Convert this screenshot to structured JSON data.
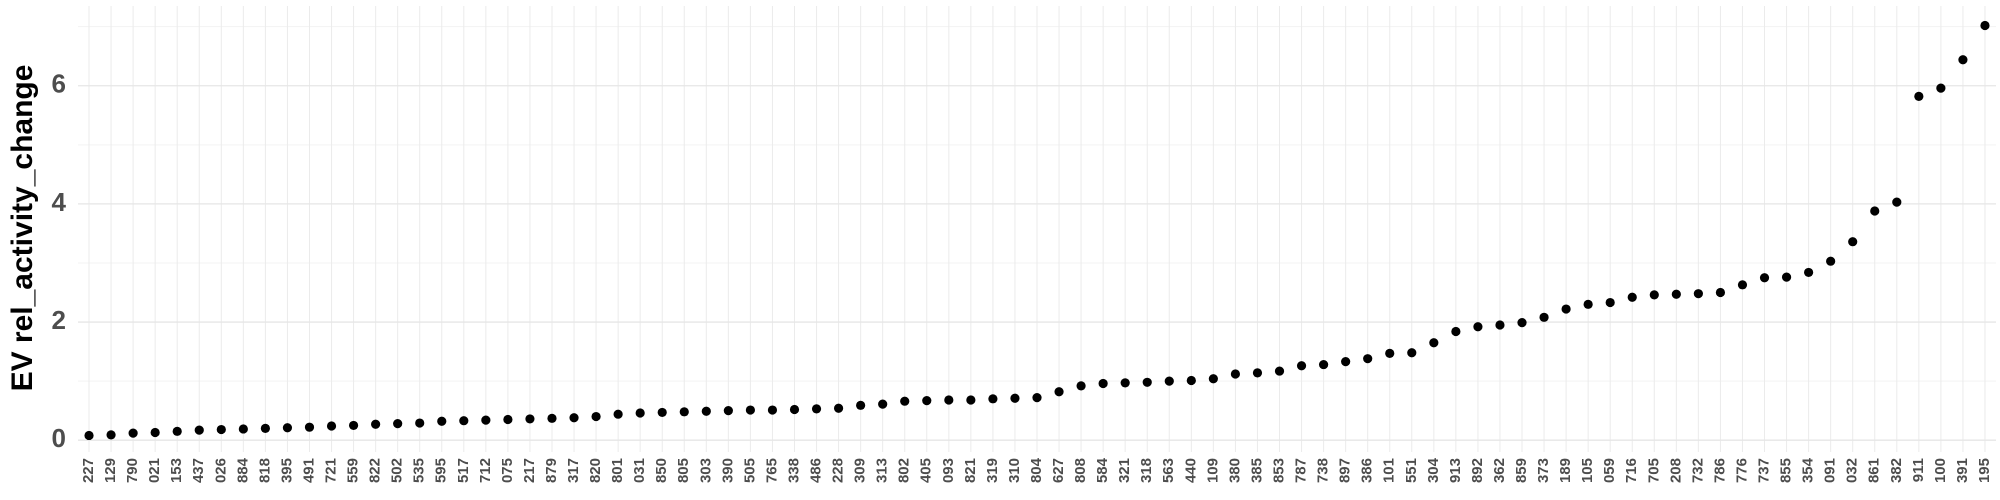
{
  "chart_data": {
    "type": "scatter",
    "y_label": "EV rel_activity_change",
    "categories": [
      "227",
      "129",
      "790",
      "021",
      "153",
      "437",
      "026",
      "884",
      "818",
      "395",
      "491",
      "721",
      "559",
      "822",
      "502",
      "535",
      "595",
      "517",
      "712",
      "075",
      "217",
      "879",
      "317",
      "820",
      "801",
      "031",
      "850",
      "805",
      "303",
      "390",
      "505",
      "765",
      "338",
      "486",
      "228",
      "309",
      "313",
      "802",
      "405",
      "093",
      "821",
      "319",
      "310",
      "804",
      "627",
      "808",
      "584",
      "321",
      "318",
      "563",
      "440",
      "109",
      "380",
      "385",
      "853",
      "787",
      "738",
      "897",
      "386",
      "101",
      "551",
      "304",
      "913",
      "892",
      "362",
      "859",
      "373",
      "189",
      "105",
      "059",
      "716",
      "705",
      "208",
      "732",
      "786",
      "776",
      "737",
      "855",
      "354",
      "091",
      "032",
      "861",
      "382",
      "911",
      "100",
      "391",
      "195"
    ],
    "values": [
      0.08,
      0.09,
      0.12,
      0.13,
      0.15,
      0.17,
      0.18,
      0.19,
      0.2,
      0.21,
      0.22,
      0.24,
      0.25,
      0.27,
      0.28,
      0.29,
      0.32,
      0.33,
      0.34,
      0.35,
      0.36,
      0.37,
      0.38,
      0.4,
      0.44,
      0.46,
      0.47,
      0.48,
      0.49,
      0.5,
      0.51,
      0.51,
      0.52,
      0.53,
      0.54,
      0.59,
      0.61,
      0.66,
      0.67,
      0.68,
      0.68,
      0.7,
      0.71,
      0.72,
      0.82,
      0.92,
      0.96,
      0.97,
      0.98,
      1.0,
      1.01,
      1.04,
      1.12,
      1.14,
      1.17,
      1.26,
      1.28,
      1.33,
      1.38,
      1.47,
      1.48,
      1.65,
      1.84,
      1.92,
      1.95,
      1.99,
      2.08,
      2.22,
      2.3,
      2.33,
      2.42,
      2.46,
      2.47,
      2.48,
      2.5,
      2.63,
      2.75,
      2.76,
      2.84,
      3.03,
      3.36,
      3.88,
      4.03,
      5.82,
      5.96,
      6.44,
      7.02
    ],
    "color": "#000000",
    "ylim": [
      -0.2,
      7.35
    ],
    "yticks": [
      0,
      2,
      4,
      6
    ],
    "grid": true
  }
}
